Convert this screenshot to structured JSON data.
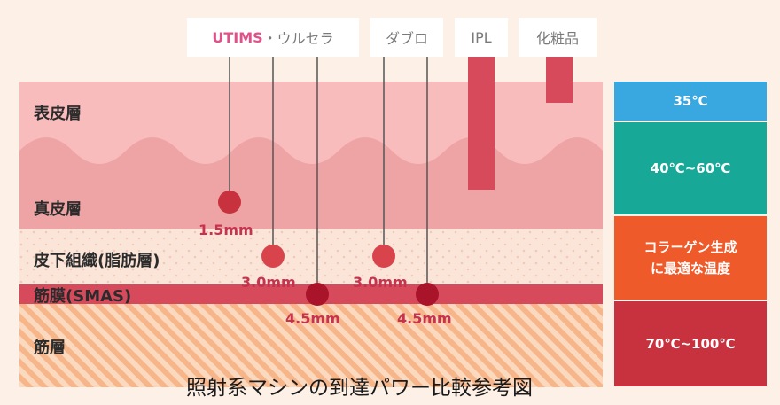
{
  "machines": {
    "utims": "UTIMS",
    "ulthera": "・ウルセラ",
    "dapro": "ダブロ",
    "ipl": "IPL",
    "cosmetics": "化粧品"
  },
  "layers": {
    "epidermis": "表皮層",
    "dermis": "真皮層",
    "subcutaneous": "皮下組織(脂肪層)",
    "smas": "筋膜(SMAS)",
    "muscle": "筋層"
  },
  "depths": {
    "d1": "1.5mm",
    "d2": "3.0mm",
    "d3": "3.0mm",
    "d4": "4.5mm",
    "d5": "4.5mm"
  },
  "temps": {
    "t1": "35℃",
    "t2": "40℃~60℃",
    "t3_line1": "コラーゲン生成",
    "t3_line2": "に最適な温度",
    "t4": "70℃~100℃"
  },
  "title": "照射系マシンの到達パワー比較参考図",
  "colors": {
    "utims": "#e0518a",
    "marker": "#c8323e",
    "epidermis": "#f9bcbc",
    "dermis": "#eea4a4",
    "smas": "#d64a5c",
    "temp35": "#3aa8e0",
    "temp40_60": "#17a897",
    "tempCollagen": "#ef5a2a",
    "temp70_100": "#c8323e"
  }
}
